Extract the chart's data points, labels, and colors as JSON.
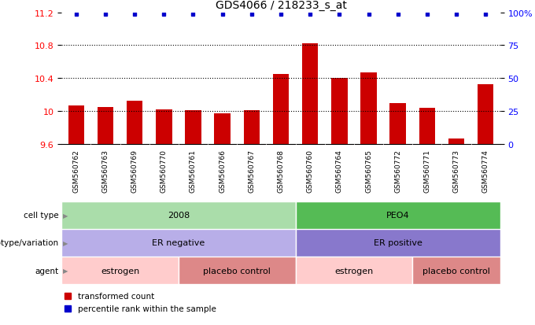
{
  "title": "GDS4066 / 218233_s_at",
  "samples": [
    "GSM560762",
    "GSM560763",
    "GSM560769",
    "GSM560770",
    "GSM560761",
    "GSM560766",
    "GSM560767",
    "GSM560768",
    "GSM560760",
    "GSM560764",
    "GSM560765",
    "GSM560772",
    "GSM560771",
    "GSM560773",
    "GSM560774"
  ],
  "bar_values": [
    10.07,
    10.05,
    10.13,
    10.02,
    10.01,
    9.97,
    10.01,
    10.45,
    10.82,
    10.4,
    10.47,
    10.1,
    10.04,
    9.67,
    10.33
  ],
  "bar_color": "#cc0000",
  "dot_color": "#0000cc",
  "ylim_left": [
    9.6,
    11.2
  ],
  "ylim_right": [
    0,
    100
  ],
  "yticks_left": [
    9.6,
    10.0,
    10.4,
    10.8,
    11.2
  ],
  "yticks_right": [
    0,
    25,
    50,
    75,
    100
  ],
  "ytick_labels_left": [
    "9.6",
    "10",
    "10.4",
    "10.8",
    "11.2"
  ],
  "ytick_labels_right": [
    "0",
    "25",
    "50",
    "75",
    "100%"
  ],
  "hlines": [
    10.0,
    10.4,
    10.8
  ],
  "cell_type_groups": [
    {
      "label": "2008",
      "start": 0,
      "end": 8,
      "color": "#aaddaa"
    },
    {
      "label": "PEO4",
      "start": 8,
      "end": 15,
      "color": "#55bb55"
    }
  ],
  "genotype_groups": [
    {
      "label": "ER negative",
      "start": 0,
      "end": 8,
      "color": "#b8aee8"
    },
    {
      "label": "ER positive",
      "start": 8,
      "end": 15,
      "color": "#8878cc"
    }
  ],
  "agent_groups": [
    {
      "label": "estrogen",
      "start": 0,
      "end": 4,
      "color": "#ffcccc"
    },
    {
      "label": "placebo control",
      "start": 4,
      "end": 8,
      "color": "#dd8888"
    },
    {
      "label": "estrogen",
      "start": 8,
      "end": 12,
      "color": "#ffcccc"
    },
    {
      "label": "placebo control",
      "start": 12,
      "end": 15,
      "color": "#dd8888"
    }
  ],
  "row_labels": [
    "cell type",
    "genotype/variation",
    "agent"
  ],
  "legend_items": [
    {
      "label": "transformed count",
      "color": "#cc0000"
    },
    {
      "label": "percentile rank within the sample",
      "color": "#0000cc"
    }
  ],
  "bar_bottom": 9.6,
  "xtick_bg": "#d0d0d0",
  "chart_bg": "#ffffff",
  "dot_percentile": 100
}
